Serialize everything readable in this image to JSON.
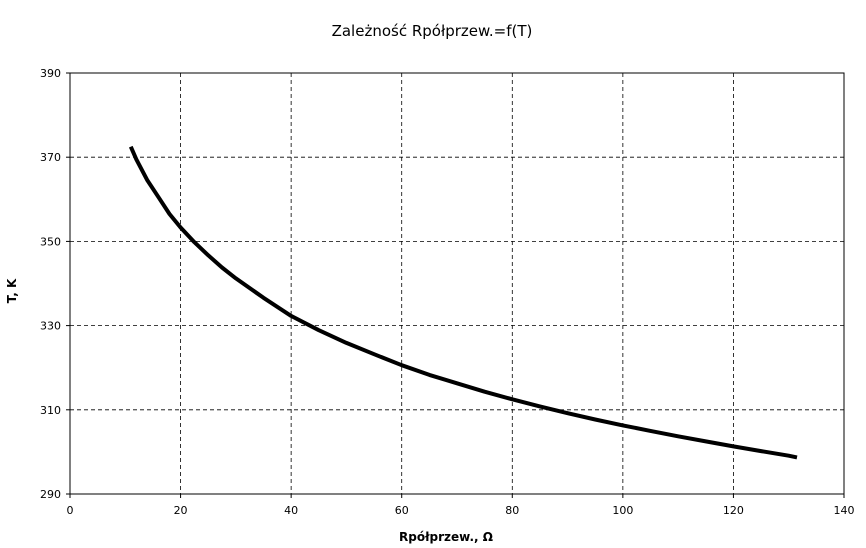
{
  "chart_data": {
    "type": "line",
    "title": "Zależność Rpółprzew.=f(T)",
    "xlabel": "Rpółprzew., Ω",
    "ylabel": "T, K",
    "xlim": [
      0,
      140
    ],
    "ylim": [
      290,
      390
    ],
    "x_ticks": [
      "0",
      "20",
      "40",
      "60",
      "80",
      "100",
      "120",
      "140"
    ],
    "y_ticks": [
      "290",
      "310",
      "330",
      "350",
      "370",
      "390"
    ],
    "grid": true,
    "grid_style": "dashed",
    "legend": "none",
    "line_color": "#000000",
    "series": [
      {
        "x": [
          11,
          12,
          14,
          16,
          18,
          20,
          22.5,
          25,
          27.5,
          30,
          35,
          40,
          45,
          50,
          55,
          60,
          65,
          70,
          75,
          80,
          85,
          90,
          95,
          100,
          105,
          110,
          115,
          120,
          125,
          130,
          131.5
        ],
        "values": [
          372.5,
          369.5,
          364.5,
          360.5,
          356.5,
          353.3,
          349.8,
          346.7,
          343.8,
          341.2,
          336.6,
          332.3,
          328.9,
          325.9,
          323.2,
          320.6,
          318.3,
          316.3,
          314.3,
          312.5,
          310.8,
          309.2,
          307.7,
          306.3,
          305.0,
          303.7,
          302.5,
          301.3,
          300.2,
          299.1,
          298.7
        ]
      }
    ]
  }
}
